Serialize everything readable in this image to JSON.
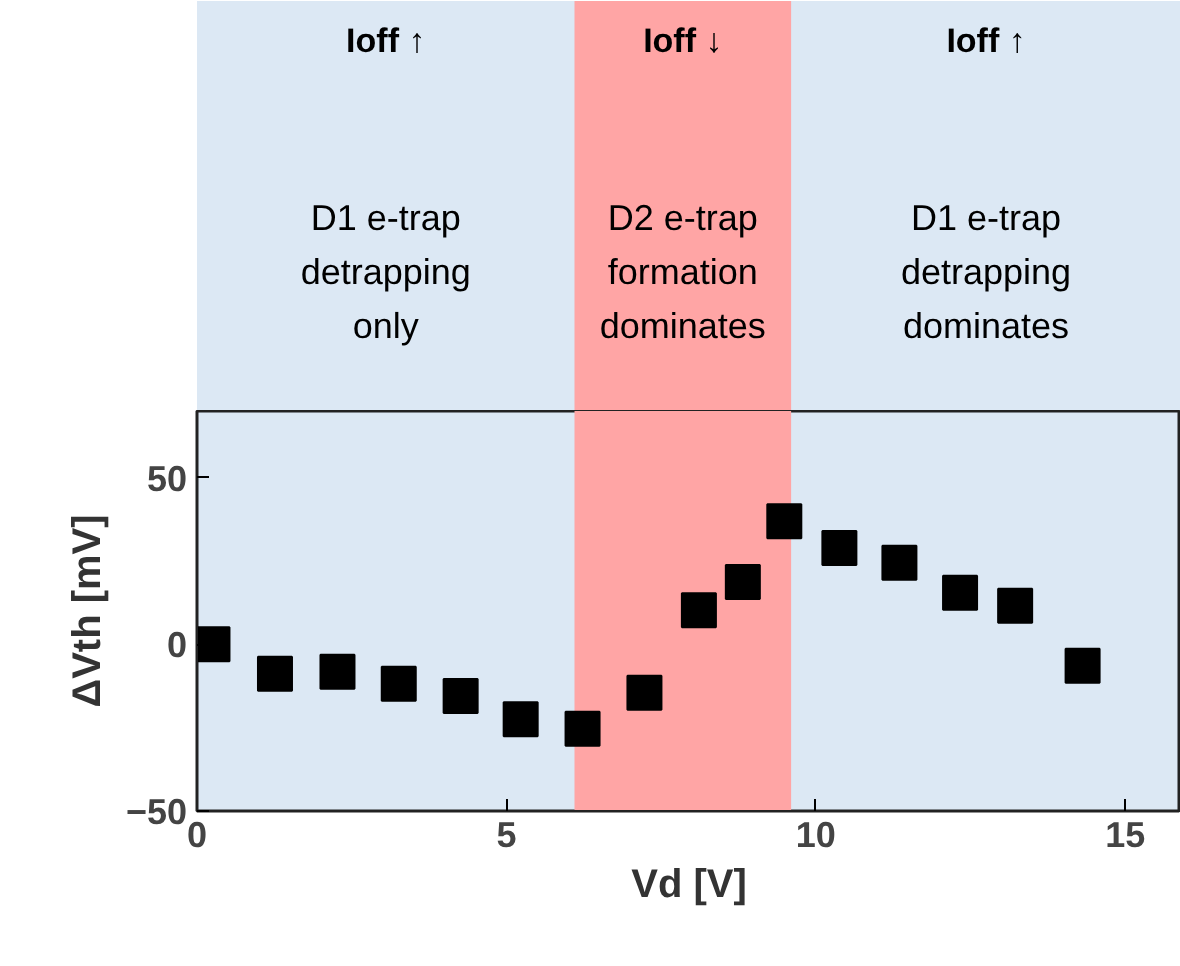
{
  "chart_data": {
    "type": "scatter",
    "xlabel": "Vd [V]",
    "ylabel": "ΔVth [mV]",
    "x": [
      0.25,
      1.26,
      2.27,
      3.26,
      4.26,
      5.23,
      6.23,
      7.23,
      8.11,
      8.82,
      9.49,
      10.38,
      11.35,
      12.33,
      13.22,
      14.31
    ],
    "series": [
      {
        "color": "#000000",
        "values": [
          0,
          -8.8,
          -8.2,
          -11.8,
          -15.5,
          -22.5,
          -25.3,
          -14.5,
          10.2,
          18.7,
          36.9,
          28.9,
          24.5,
          15.5,
          11.6,
          -6.4
        ]
      }
    ],
    "xlim": [
      0,
      15.9
    ],
    "ylim": [
      -50,
      70
    ],
    "xticks": [
      0,
      5,
      10,
      15
    ],
    "yticks": [
      -50,
      0,
      50
    ],
    "bands": [
      {
        "axis": "x",
        "from": 6.1,
        "to": 9.6,
        "color": "#ffa5a5"
      }
    ],
    "annotations": [
      "Ioff ↑",
      "D1 e-trap\ndetrapping\nonly",
      "Ioff ↓",
      "D2 e-trap\nformation\ndominates",
      "Ioff ↑",
      "D1 e-trap\ndetrapping\ndominates"
    ],
    "marker": "square",
    "grid": false
  }
}
